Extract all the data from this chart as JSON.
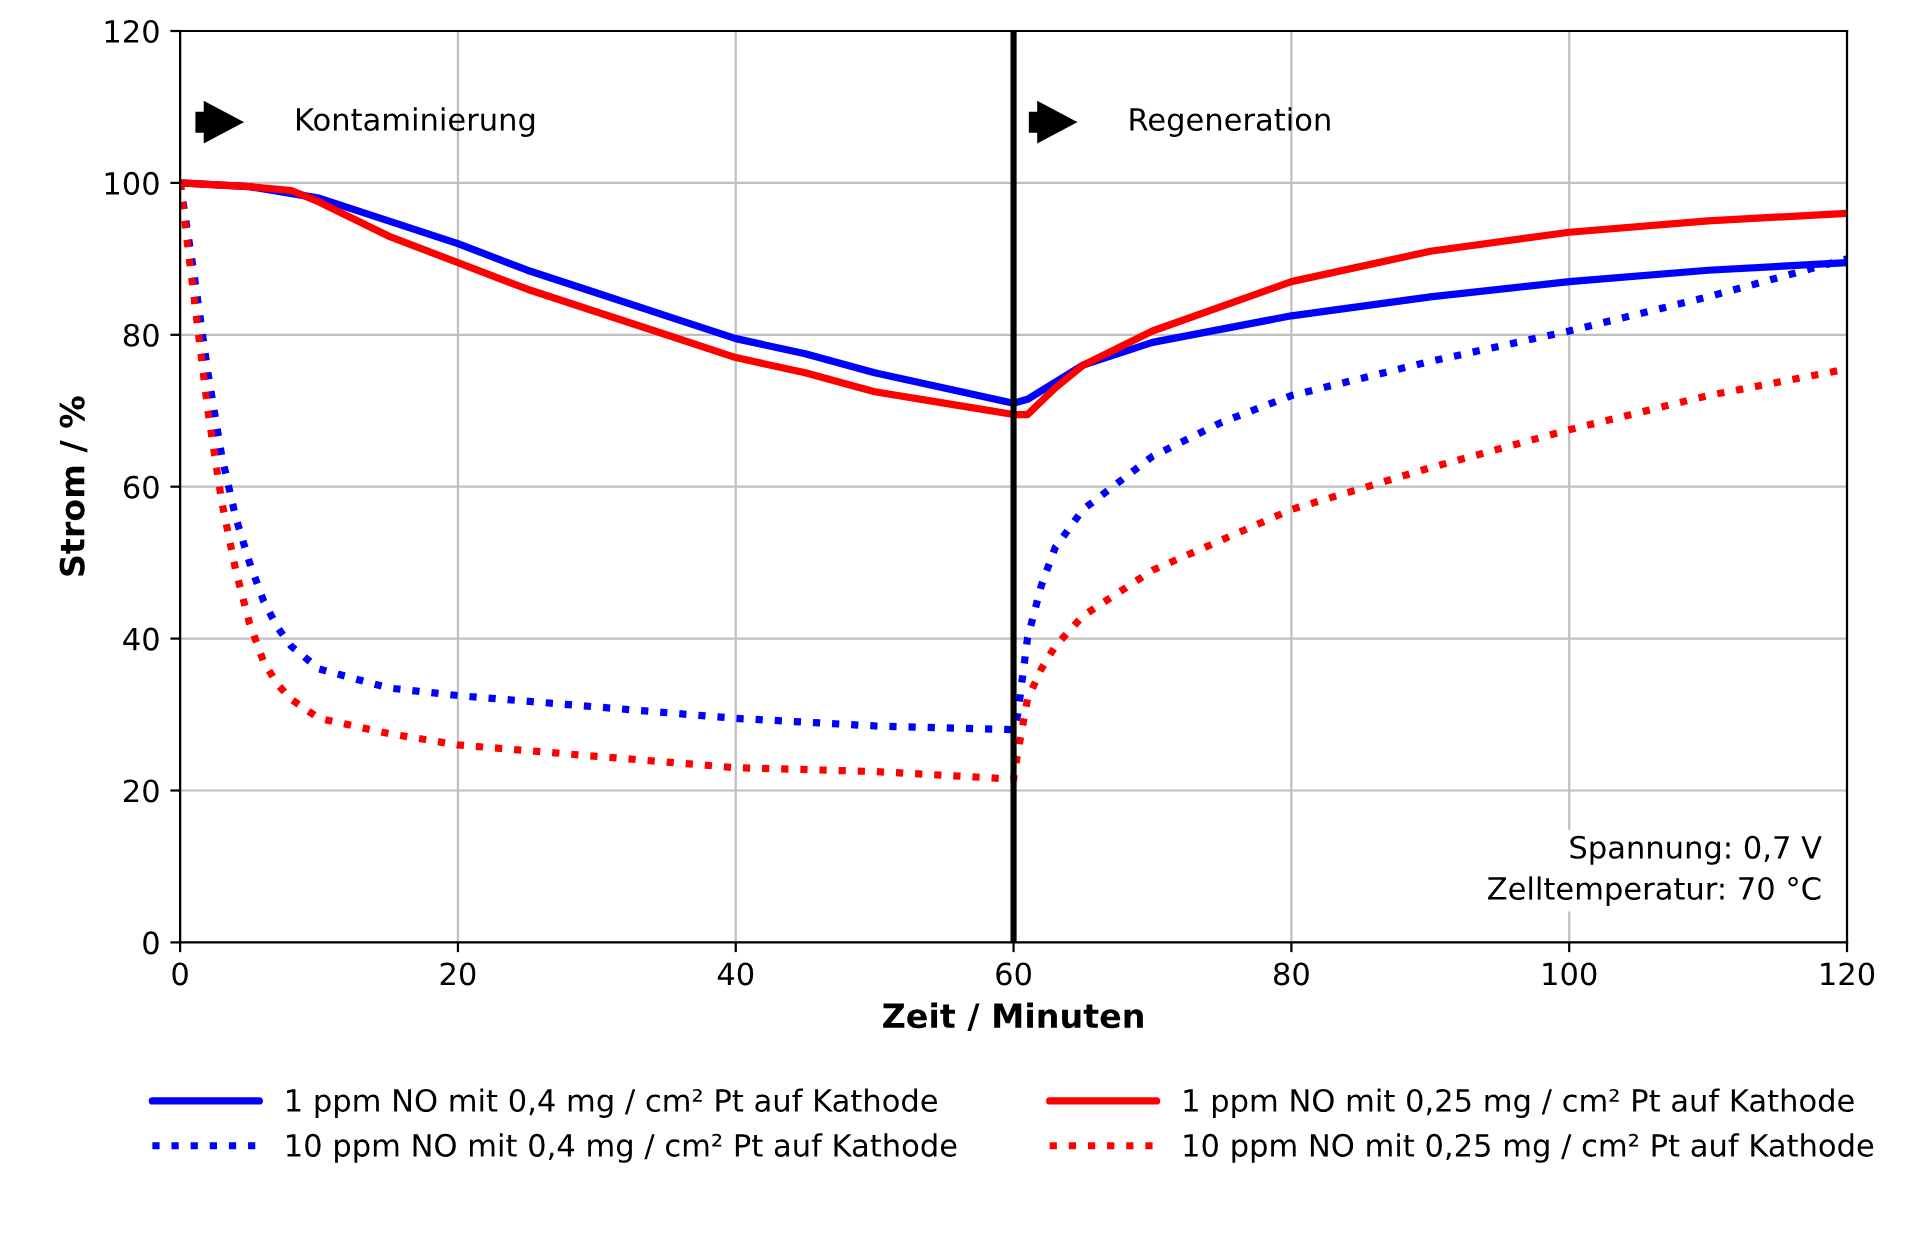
{
  "chart_data": {
    "type": "line",
    "xlabel": "Zeit / Minuten",
    "ylabel": "Strom / %",
    "xlim": [
      0,
      120
    ],
    "ylim": [
      0,
      120
    ],
    "xticks": [
      0,
      20,
      40,
      60,
      80,
      100,
      120
    ],
    "yticks": [
      0,
      20,
      40,
      60,
      80,
      100,
      120
    ],
    "grid": true,
    "legend": "bottom",
    "marker": "none",
    "ref_lines": [
      {
        "axis": "x",
        "value": 60,
        "color": "#000000",
        "line_style": "solid"
      }
    ],
    "annotations": [
      "Kontaminierung",
      "Regeneration",
      "Spannung: 0,7 V\nZelltemperatur: 70 °C"
    ],
    "series": [
      {
        "name": "1 ppm NO mit 0,4 mg / cm² Pt auf Kathode",
        "color": "#0000ff",
        "line_style": "solid",
        "x": [
          0,
          5,
          10,
          15,
          20,
          25,
          30,
          35,
          40,
          45,
          50,
          55,
          60,
          61,
          65,
          70,
          80,
          90,
          100,
          110,
          120
        ],
        "values": [
          100,
          99.5,
          98,
          95,
          92,
          88.5,
          85.5,
          82.5,
          79.5,
          77.5,
          75,
          73,
          71,
          71.5,
          76,
          79,
          82.5,
          85,
          87,
          88.5,
          89.5
        ]
      },
      {
        "name": "1 ppm NO mit 0,25 mg / cm² Pt auf Kathode",
        "color": "#ff0000",
        "line_style": "solid",
        "x": [
          0,
          5,
          8,
          10,
          15,
          20,
          25,
          30,
          35,
          40,
          45,
          50,
          55,
          60,
          61,
          63,
          65,
          70,
          80,
          90,
          100,
          110,
          120
        ],
        "values": [
          100,
          99.5,
          99,
          97.5,
          93,
          89.5,
          86,
          83,
          80,
          77,
          75,
          72.5,
          71,
          69.5,
          69.5,
          73,
          76,
          80.5,
          87,
          91,
          93.5,
          95,
          96
        ]
      },
      {
        "name": "10 ppm NO mit 0,4 mg / cm² Pt auf Kathode",
        "color": "#0000ff",
        "line_style": "dotted",
        "x": [
          0,
          1,
          2,
          3,
          4,
          5,
          6,
          7,
          8,
          10,
          15,
          20,
          30,
          40,
          50,
          60,
          60.3,
          61,
          62,
          63,
          65,
          70,
          75,
          80,
          90,
          100,
          110,
          120
        ],
        "values": [
          100,
          88,
          75,
          64,
          56,
          50,
          45,
          41.5,
          39,
          36,
          33.5,
          32.5,
          31,
          29.5,
          28.5,
          28,
          30,
          40,
          47,
          52,
          57,
          64,
          68.5,
          72,
          76.5,
          80.5,
          85,
          90
        ]
      },
      {
        "name": "10 ppm NO mit 0,25 mg / cm² Pt auf Kathode",
        "color": "#ff0000",
        "line_style": "dotted",
        "x": [
          0,
          1,
          2,
          3,
          4,
          5,
          6,
          7,
          8,
          10,
          15,
          20,
          30,
          40,
          50,
          60,
          60.3,
          61,
          62,
          63,
          65,
          70,
          80,
          90,
          100,
          110,
          120
        ],
        "values": [
          100,
          85,
          70,
          58,
          49,
          42,
          37,
          34,
          32,
          29.5,
          27.5,
          26,
          24.5,
          23,
          22.5,
          21.5,
          25,
          32,
          36,
          39,
          43,
          49,
          57,
          62.5,
          67.5,
          72,
          75.5
        ]
      }
    ]
  }
}
